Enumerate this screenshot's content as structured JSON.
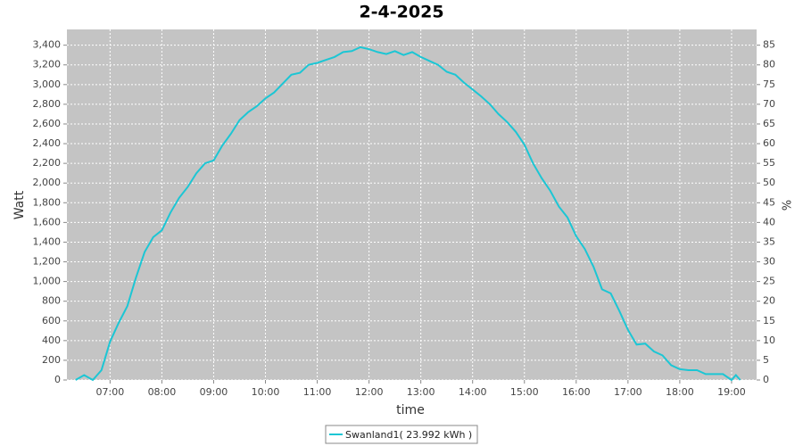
{
  "chart_data": {
    "type": "line",
    "title": "2-4-2025",
    "x_label": "time",
    "y_label": "Watt",
    "y2_label": "%",
    "x": [
      380,
      390,
      400,
      410,
      420,
      430,
      440,
      450,
      460,
      470,
      480,
      490,
      500,
      510,
      520,
      530,
      540,
      550,
      560,
      570,
      580,
      590,
      600,
      610,
      620,
      630,
      640,
      650,
      660,
      670,
      680,
      690,
      700,
      710,
      720,
      730,
      740,
      750,
      760,
      770,
      780,
      790,
      800,
      810,
      820,
      830,
      840,
      850,
      860,
      870,
      880,
      890,
      900,
      910,
      920,
      930,
      940,
      950,
      960,
      970,
      980,
      990,
      1000,
      1010,
      1020,
      1030,
      1040,
      1050,
      1060,
      1070,
      1080,
      1090,
      1100,
      1110,
      1120,
      1130,
      1140,
      1145,
      1150
    ],
    "series": [
      {
        "name": "Swanland1( 23.992 kWh )",
        "color": "#1cc6d4",
        "values": [
          0,
          50,
          0,
          100,
          390,
          580,
          750,
          1040,
          1300,
          1450,
          1520,
          1700,
          1850,
          1960,
          2100,
          2200,
          2230,
          2380,
          2500,
          2640,
          2720,
          2780,
          2860,
          2920,
          3010,
          3100,
          3120,
          3200,
          3220,
          3250,
          3280,
          3330,
          3340,
          3380,
          3360,
          3330,
          3310,
          3340,
          3300,
          3330,
          3280,
          3240,
          3200,
          3130,
          3100,
          3020,
          2950,
          2880,
          2800,
          2700,
          2620,
          2520,
          2390,
          2200,
          2050,
          1920,
          1760,
          1650,
          1460,
          1330,
          1150,
          920,
          880,
          700,
          510,
          360,
          370,
          290,
          250,
          150,
          110,
          100,
          100,
          60,
          60,
          60,
          0,
          50,
          0
        ]
      }
    ],
    "xlim": [
      370,
      1169
    ],
    "xticks": [
      {
        "value": 420,
        "label": "07:00"
      },
      {
        "value": 480,
        "label": "08:00"
      },
      {
        "value": 540,
        "label": "09:00"
      },
      {
        "value": 600,
        "label": "10:00"
      },
      {
        "value": 660,
        "label": "11:00"
      },
      {
        "value": 720,
        "label": "12:00"
      },
      {
        "value": 780,
        "label": "13:00"
      },
      {
        "value": 840,
        "label": "14:00"
      },
      {
        "value": 900,
        "label": "15:00"
      },
      {
        "value": 960,
        "label": "16:00"
      },
      {
        "value": 1020,
        "label": "17:00"
      },
      {
        "value": 1080,
        "label": "18:00"
      },
      {
        "value": 1140,
        "label": "19:00"
      }
    ],
    "ylim": [
      0,
      3560
    ],
    "yticks": [
      0,
      200,
      400,
      600,
      800,
      {
        "value": 1000,
        "label": "1,000"
      },
      {
        "value": 1200,
        "label": "1,200"
      },
      {
        "value": 1400,
        "label": "1,400"
      },
      {
        "value": 1600,
        "label": "1,600"
      },
      {
        "value": 1800,
        "label": "1,800"
      },
      {
        "value": 2000,
        "label": "2,000"
      },
      {
        "value": 2200,
        "label": "2,200"
      },
      {
        "value": 2400,
        "label": "2,400"
      },
      {
        "value": 2600,
        "label": "2,600"
      },
      {
        "value": 2800,
        "label": "2,800"
      },
      {
        "value": 3000,
        "label": "3,000"
      },
      {
        "value": 3200,
        "label": "3,200"
      },
      {
        "value": 3400,
        "label": "3,400"
      }
    ],
    "y2lim": [
      0,
      89
    ],
    "y2ticks": [
      0,
      5,
      10,
      15,
      20,
      25,
      30,
      35,
      40,
      45,
      50,
      55,
      60,
      65,
      70,
      75,
      80,
      85
    ],
    "grid": true,
    "legend": "bottom"
  }
}
